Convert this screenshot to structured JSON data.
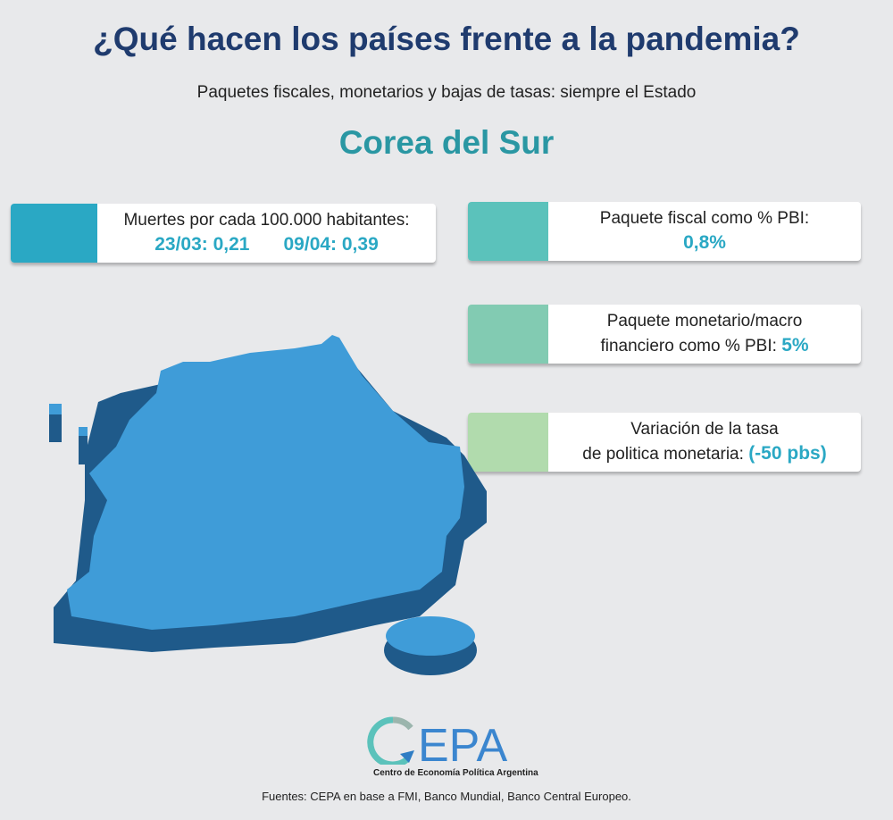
{
  "header": {
    "title": "¿Qué hacen los países frente a la pandemia?",
    "subtitle": "Paquetes fiscales, monetarios y bajas de tasas: siempre el Estado",
    "country": "Corea del Sur"
  },
  "cards": [
    {
      "label": "Muertes por cada 100.000 habitantes:",
      "values": [
        "23/03: 0,21",
        "09/04: 0,39"
      ],
      "color": "#2aa8c4"
    },
    {
      "label": "Paquete fiscal como % PBI:",
      "value": "0,8%",
      "color": "#5bc2bb"
    },
    {
      "label_line1": "Paquete monetario/macro",
      "label_line2": "financiero como % PBI:",
      "value": "5%",
      "color": "#82cbb2"
    },
    {
      "label_line1": "Variación de la tasa",
      "label_line2": "de politica monetaria:",
      "value": "(-50 pbs)",
      "color": "#b1dbad"
    }
  ],
  "logo": {
    "name": "CEPA",
    "tagline": "Centro de Economía Política Argentina"
  },
  "footer": {
    "sources": "Fuentes: CEPA en base a FMI, Banco Mundial, Banco Central Europeo."
  }
}
